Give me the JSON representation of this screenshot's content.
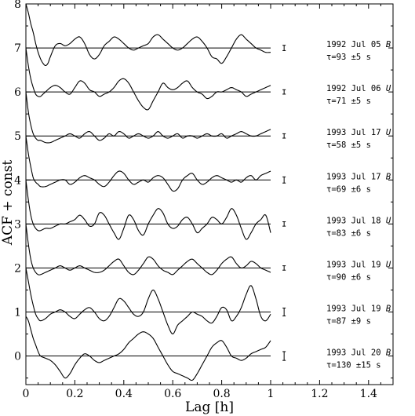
{
  "chart_data": {
    "type": "line",
    "xlabel": "Lag [h]",
    "ylabel": "ACF + const",
    "xlim": [
      0,
      1.5
    ],
    "ylim": [
      -0.65,
      8
    ],
    "xticks": [
      "0",
      "0.2",
      "0.4",
      "0.6",
      "0.8",
      "1",
      "1.2",
      "1.4"
    ],
    "yticks": [
      "0",
      "1",
      "2",
      "3",
      "4",
      "5",
      "6",
      "7",
      "8"
    ],
    "grid": false,
    "legend": "none",
    "series": [
      {
        "offset": 7,
        "label_date": "1992 Jul 05",
        "band": "B",
        "tau": "τ=93 ±5 s",
        "error_bar": 0.06,
        "x": [
          0,
          0.01,
          0.02,
          0.03,
          0.04,
          0.05,
          0.06,
          0.07,
          0.08,
          0.09,
          0.1,
          0.12,
          0.14,
          0.16,
          0.18,
          0.2,
          0.22,
          0.24,
          0.26,
          0.28,
          0.3,
          0.32,
          0.34,
          0.36,
          0.38,
          0.4,
          0.42,
          0.44,
          0.46,
          0.48,
          0.5,
          0.52,
          0.54,
          0.56,
          0.58,
          0.6,
          0.62,
          0.64,
          0.66,
          0.68,
          0.7,
          0.72,
          0.74,
          0.76,
          0.78,
          0.8,
          0.82,
          0.84,
          0.86,
          0.88,
          0.9,
          0.92,
          0.94,
          0.96,
          0.98,
          1.0
        ],
        "y": [
          1.0,
          0.8,
          0.55,
          0.35,
          0.1,
          -0.1,
          -0.25,
          -0.35,
          -0.4,
          -0.35,
          -0.2,
          0.05,
          0.1,
          0.05,
          0.1,
          0.2,
          0.25,
          0.1,
          -0.15,
          -0.25,
          -0.15,
          0.05,
          0.15,
          0.25,
          0.2,
          0.1,
          0.0,
          -0.05,
          0.0,
          0.05,
          0.1,
          0.25,
          0.3,
          0.2,
          0.1,
          0.0,
          -0.05,
          0.0,
          0.1,
          0.2,
          0.25,
          0.15,
          0.0,
          -0.2,
          -0.25,
          -0.35,
          -0.2,
          0.0,
          0.2,
          0.3,
          0.2,
          0.1,
          0.0,
          -0.05,
          -0.1,
          -0.1
        ]
      },
      {
        "offset": 6,
        "label_date": "1992 Jul 06",
        "band": "U",
        "tau": "τ=71 ±5 s",
        "error_bar": 0.05,
        "x": [
          0,
          0.01,
          0.02,
          0.03,
          0.04,
          0.05,
          0.06,
          0.07,
          0.08,
          0.1,
          0.12,
          0.14,
          0.16,
          0.18,
          0.2,
          0.22,
          0.24,
          0.26,
          0.28,
          0.3,
          0.32,
          0.34,
          0.36,
          0.38,
          0.4,
          0.42,
          0.44,
          0.46,
          0.48,
          0.5,
          0.52,
          0.54,
          0.56,
          0.58,
          0.6,
          0.62,
          0.64,
          0.66,
          0.68,
          0.7,
          0.72,
          0.74,
          0.76,
          0.78,
          0.8,
          0.82,
          0.84,
          0.86,
          0.88,
          0.9,
          0.92,
          0.94,
          0.96,
          0.98,
          1.0
        ],
        "y": [
          1.0,
          0.6,
          0.3,
          0.1,
          -0.05,
          -0.1,
          -0.1,
          -0.05,
          0.0,
          0.1,
          0.15,
          0.1,
          0.0,
          -0.05,
          0.1,
          0.25,
          0.2,
          0.05,
          0.0,
          -0.1,
          -0.05,
          0.0,
          0.1,
          0.25,
          0.3,
          0.2,
          0.0,
          -0.2,
          -0.35,
          -0.4,
          -0.2,
          0.0,
          0.2,
          0.1,
          0.05,
          0.1,
          0.2,
          0.25,
          0.1,
          0.0,
          -0.05,
          -0.15,
          -0.1,
          0.0,
          0.0,
          0.05,
          0.1,
          0.05,
          0.0,
          -0.1,
          -0.05,
          0.0,
          0.05,
          0.1,
          0.15
        ]
      },
      {
        "offset": 5,
        "label_date": "1993 Jul 17",
        "band": "U",
        "tau": "τ=58 ±5 s",
        "error_bar": 0.05,
        "x": [
          0,
          0.01,
          0.02,
          0.03,
          0.04,
          0.05,
          0.06,
          0.08,
          0.1,
          0.12,
          0.14,
          0.16,
          0.18,
          0.2,
          0.22,
          0.24,
          0.26,
          0.28,
          0.3,
          0.32,
          0.34,
          0.36,
          0.38,
          0.4,
          0.42,
          0.44,
          0.46,
          0.48,
          0.5,
          0.52,
          0.54,
          0.56,
          0.58,
          0.6,
          0.62,
          0.64,
          0.66,
          0.68,
          0.7,
          0.72,
          0.74,
          0.76,
          0.78,
          0.8,
          0.82,
          0.84,
          0.86,
          0.88,
          0.9,
          0.92,
          0.94,
          0.96,
          0.98,
          1.0
        ],
        "y": [
          1.0,
          0.55,
          0.25,
          0.05,
          -0.05,
          -0.1,
          -0.1,
          -0.15,
          -0.15,
          -0.1,
          -0.05,
          0.0,
          0.05,
          0.0,
          -0.05,
          0.05,
          0.1,
          0.0,
          -0.1,
          -0.05,
          0.05,
          0.0,
          0.1,
          0.05,
          -0.05,
          0.0,
          0.05,
          0.0,
          -0.05,
          0.0,
          0.1,
          0.0,
          -0.05,
          0.0,
          0.05,
          -0.05,
          0.0,
          0.0,
          -0.05,
          0.0,
          0.05,
          0.0,
          0.0,
          0.05,
          -0.05,
          0.0,
          0.05,
          0.1,
          0.05,
          0.0,
          0.0,
          0.05,
          0.1,
          0.15
        ]
      },
      {
        "offset": 4,
        "label_date": "1993 Jul 17",
        "band": "B",
        "tau": "τ=69 ±6 s",
        "error_bar": 0.07,
        "x": [
          0,
          0.01,
          0.02,
          0.03,
          0.04,
          0.05,
          0.06,
          0.08,
          0.1,
          0.12,
          0.14,
          0.16,
          0.18,
          0.2,
          0.22,
          0.24,
          0.26,
          0.28,
          0.3,
          0.32,
          0.34,
          0.36,
          0.38,
          0.4,
          0.42,
          0.44,
          0.46,
          0.48,
          0.5,
          0.52,
          0.54,
          0.56,
          0.58,
          0.6,
          0.62,
          0.64,
          0.66,
          0.68,
          0.7,
          0.72,
          0.74,
          0.76,
          0.78,
          0.8,
          0.82,
          0.84,
          0.86,
          0.88,
          0.9,
          0.92,
          0.94,
          0.96,
          0.98,
          1.0
        ],
        "y": [
          1.0,
          0.6,
          0.3,
          0.05,
          -0.05,
          -0.1,
          -0.15,
          -0.15,
          -0.1,
          -0.05,
          0.0,
          0.0,
          -0.1,
          -0.05,
          0.05,
          0.1,
          0.05,
          0.0,
          -0.1,
          -0.15,
          -0.05,
          0.1,
          0.2,
          0.15,
          0.0,
          -0.1,
          -0.05,
          0.0,
          -0.05,
          0.05,
          0.1,
          0.05,
          -0.1,
          -0.25,
          -0.2,
          0.0,
          0.1,
          0.15,
          0.0,
          -0.1,
          -0.05,
          0.05,
          0.1,
          0.05,
          0.0,
          -0.05,
          0.0,
          -0.05,
          0.05,
          0.1,
          0.0,
          0.1,
          0.15,
          0.2
        ]
      },
      {
        "offset": 3,
        "label_date": "1993 Jul 18",
        "band": "U",
        "tau": "τ=83 ±6 s",
        "error_bar": 0.05,
        "x": [
          0,
          0.01,
          0.02,
          0.03,
          0.04,
          0.05,
          0.06,
          0.08,
          0.1,
          0.12,
          0.14,
          0.16,
          0.18,
          0.2,
          0.22,
          0.24,
          0.26,
          0.28,
          0.3,
          0.32,
          0.34,
          0.36,
          0.38,
          0.4,
          0.42,
          0.44,
          0.46,
          0.48,
          0.5,
          0.52,
          0.54,
          0.56,
          0.58,
          0.6,
          0.62,
          0.64,
          0.66,
          0.68,
          0.7,
          0.72,
          0.74,
          0.76,
          0.78,
          0.8,
          0.82,
          0.84,
          0.86,
          0.88,
          0.9,
          0.92,
          0.94,
          0.96,
          0.98,
          1.0
        ],
        "y": [
          1.0,
          0.55,
          0.2,
          0.0,
          -0.1,
          -0.15,
          -0.15,
          -0.1,
          -0.1,
          -0.05,
          0.0,
          0.0,
          0.05,
          0.1,
          0.2,
          0.1,
          -0.05,
          0.0,
          0.25,
          0.2,
          0.0,
          -0.2,
          -0.35,
          -0.1,
          0.2,
          0.1,
          -0.15,
          -0.25,
          0.0,
          0.2,
          0.35,
          0.25,
          0.0,
          -0.1,
          -0.05,
          0.1,
          0.15,
          0.0,
          -0.2,
          -0.1,
          0.0,
          0.15,
          0.1,
          0.0,
          0.15,
          0.35,
          0.2,
          -0.1,
          -0.35,
          -0.2,
          0.0,
          0.1,
          0.2,
          -0.2
        ]
      },
      {
        "offset": 2,
        "label_date": "1993 Jul 19",
        "band": "U",
        "tau": "τ=90 ±6 s",
        "error_bar": 0.05,
        "x": [
          0,
          0.01,
          0.02,
          0.03,
          0.04,
          0.05,
          0.06,
          0.08,
          0.1,
          0.12,
          0.14,
          0.16,
          0.18,
          0.2,
          0.22,
          0.24,
          0.26,
          0.28,
          0.3,
          0.32,
          0.34,
          0.36,
          0.38,
          0.4,
          0.42,
          0.44,
          0.46,
          0.48,
          0.5,
          0.52,
          0.54,
          0.56,
          0.58,
          0.6,
          0.62,
          0.64,
          0.66,
          0.68,
          0.7,
          0.72,
          0.74,
          0.76,
          0.78,
          0.8,
          0.82,
          0.84,
          0.86,
          0.88,
          0.9,
          0.92,
          0.94,
          0.96,
          0.98,
          1.0
        ],
        "y": [
          1.0,
          0.55,
          0.2,
          0.0,
          -0.1,
          -0.15,
          -0.15,
          -0.1,
          -0.05,
          0.0,
          0.05,
          0.0,
          -0.05,
          0.0,
          0.05,
          0.0,
          -0.05,
          -0.1,
          -0.1,
          -0.05,
          0.05,
          0.15,
          0.2,
          0.05,
          -0.1,
          -0.15,
          -0.05,
          0.1,
          0.25,
          0.2,
          0.05,
          -0.05,
          -0.1,
          -0.15,
          -0.05,
          0.05,
          0.15,
          0.2,
          0.1,
          0.0,
          -0.1,
          -0.15,
          -0.05,
          0.1,
          0.2,
          0.25,
          0.1,
          0.0,
          0.05,
          0.15,
          0.1,
          0.0,
          -0.05,
          -0.1
        ]
      },
      {
        "offset": 1,
        "label_date": "1993 Jul 19",
        "band": "B",
        "tau": "τ=87 ±9 s",
        "error_bar": 0.09,
        "x": [
          0,
          0.01,
          0.02,
          0.03,
          0.04,
          0.05,
          0.06,
          0.08,
          0.1,
          0.12,
          0.14,
          0.16,
          0.18,
          0.2,
          0.22,
          0.24,
          0.26,
          0.28,
          0.3,
          0.32,
          0.34,
          0.36,
          0.38,
          0.4,
          0.42,
          0.44,
          0.46,
          0.48,
          0.5,
          0.52,
          0.54,
          0.56,
          0.58,
          0.6,
          0.62,
          0.64,
          0.66,
          0.68,
          0.7,
          0.72,
          0.74,
          0.76,
          0.78,
          0.8,
          0.82,
          0.84,
          0.86,
          0.88,
          0.9,
          0.92,
          0.94,
          0.96,
          0.98,
          1.0
        ],
        "y": [
          1.0,
          0.7,
          0.4,
          0.15,
          -0.05,
          -0.15,
          -0.2,
          -0.15,
          -0.05,
          0.0,
          0.05,
          0.0,
          -0.1,
          -0.15,
          -0.05,
          0.05,
          0.1,
          0.0,
          -0.15,
          -0.2,
          -0.1,
          0.1,
          0.3,
          0.25,
          0.1,
          -0.05,
          -0.1,
          0.0,
          0.3,
          0.5,
          0.3,
          0.0,
          -0.3,
          -0.5,
          -0.3,
          -0.2,
          -0.1,
          0.0,
          -0.05,
          -0.1,
          -0.2,
          -0.25,
          -0.1,
          0.1,
          0.05,
          -0.2,
          -0.1,
          0.1,
          0.4,
          0.6,
          0.3,
          -0.1,
          -0.2,
          -0.05
        ]
      },
      {
        "offset": 0,
        "label_date": "1993 Jul 20",
        "band": "B",
        "tau": "τ=130 ±15 s",
        "error_bar": 0.1,
        "x": [
          0,
          0.01,
          0.02,
          0.03,
          0.04,
          0.05,
          0.06,
          0.08,
          0.1,
          0.12,
          0.14,
          0.16,
          0.18,
          0.2,
          0.22,
          0.24,
          0.26,
          0.28,
          0.3,
          0.32,
          0.34,
          0.36,
          0.38,
          0.4,
          0.42,
          0.44,
          0.46,
          0.48,
          0.5,
          0.52,
          0.54,
          0.56,
          0.58,
          0.6,
          0.62,
          0.64,
          0.66,
          0.68,
          0.7,
          0.72,
          0.74,
          0.76,
          0.78,
          0.8,
          0.82,
          0.84,
          0.86,
          0.88,
          0.9,
          0.92,
          0.94,
          0.96,
          0.98,
          1.0
        ],
        "y": [
          0.9,
          0.8,
          0.6,
          0.4,
          0.25,
          0.1,
          0.0,
          -0.05,
          -0.1,
          -0.2,
          -0.35,
          -0.5,
          -0.4,
          -0.2,
          -0.05,
          0.05,
          0.0,
          -0.1,
          -0.15,
          -0.1,
          -0.05,
          0.0,
          0.05,
          0.15,
          0.3,
          0.4,
          0.5,
          0.55,
          0.5,
          0.4,
          0.2,
          0.0,
          -0.2,
          -0.35,
          -0.4,
          -0.45,
          -0.5,
          -0.55,
          -0.4,
          -0.2,
          0.0,
          0.2,
          0.3,
          0.35,
          0.2,
          0.0,
          -0.05,
          -0.1,
          -0.05,
          0.05,
          0.1,
          0.15,
          0.2,
          0.35
        ]
      }
    ]
  }
}
